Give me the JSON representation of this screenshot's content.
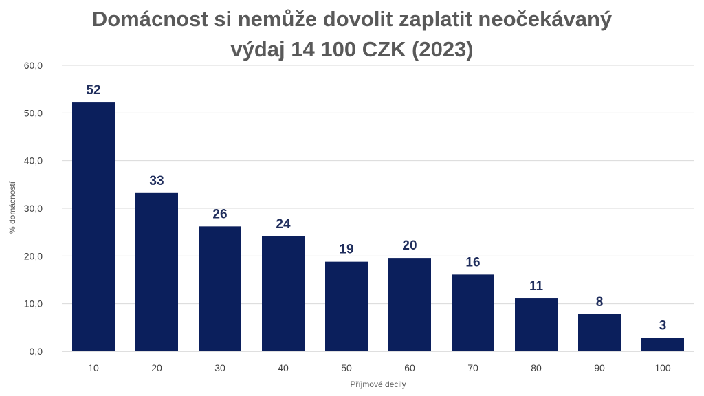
{
  "chart_data": {
    "type": "bar",
    "title_line1": "Domácnost si nemůže dovolit zaplatit neočekávaný",
    "title_line2": "výdaj 14 100 CZK (2023)",
    "xlabel": "Příjmové decily",
    "ylabel": "% domácností",
    "categories": [
      "10",
      "20",
      "30",
      "40",
      "50",
      "60",
      "70",
      "80",
      "90",
      "100"
    ],
    "values": [
      52.2,
      33.2,
      26.2,
      24.1,
      18.8,
      19.6,
      16.1,
      11.1,
      7.8,
      2.8
    ],
    "data_labels": [
      "52",
      "33",
      "26",
      "24",
      "19",
      "20",
      "16",
      "11",
      "8",
      "3"
    ],
    "ylim": [
      0,
      60
    ],
    "yticks": [
      0,
      10,
      20,
      30,
      40,
      50,
      60
    ],
    "ytick_labels": [
      "0,0",
      "10,0",
      "20,0",
      "30,0",
      "40,0",
      "50,0",
      "60,0"
    ],
    "grid": true,
    "legend": "none",
    "colors": {
      "bar": "#0b1f5c",
      "grid": "#d9d9d9",
      "label": "#1f2d5c"
    }
  }
}
